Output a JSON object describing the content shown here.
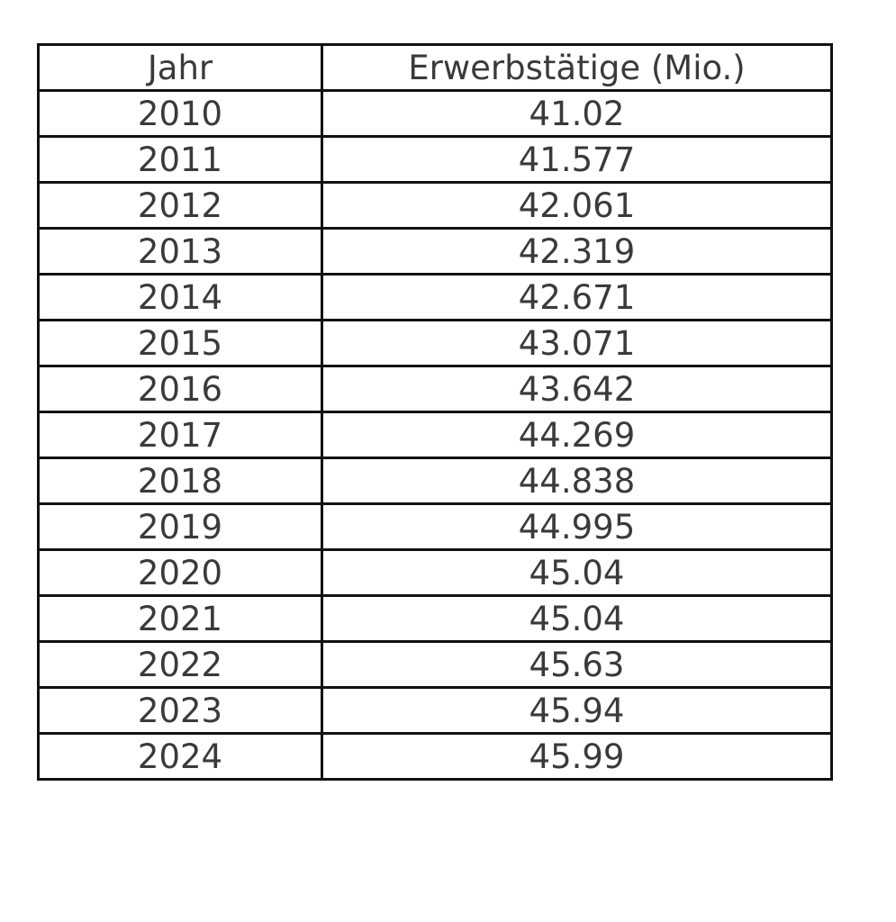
{
  "chart_data": {
    "type": "table",
    "columns": [
      "Jahr",
      "Erwerbstätige (Mio.)"
    ],
    "rows": [
      [
        "2010",
        "41.02"
      ],
      [
        "2011",
        "41.577"
      ],
      [
        "2012",
        "42.061"
      ],
      [
        "2013",
        "42.319"
      ],
      [
        "2014",
        "42.671"
      ],
      [
        "2015",
        "43.071"
      ],
      [
        "2016",
        "43.642"
      ],
      [
        "2017",
        "44.269"
      ],
      [
        "2018",
        "44.838"
      ],
      [
        "2019",
        "44.995"
      ],
      [
        "2020",
        "45.04"
      ],
      [
        "2021",
        "45.04"
      ],
      [
        "2022",
        "45.63"
      ],
      [
        "2023",
        "45.94"
      ],
      [
        "2024",
        "45.99"
      ]
    ]
  },
  "colors": {
    "text": "#3a3a3a",
    "border": "#111111",
    "background": "#ffffff"
  }
}
